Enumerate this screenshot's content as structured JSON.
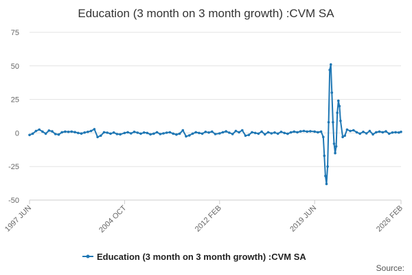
{
  "chart_data": {
    "type": "line",
    "title": "Education (3 month on 3 month growth) :CVM SA",
    "xlabel": "",
    "ylabel": "",
    "ylim": [
      -50,
      75
    ],
    "y_ticks": [
      75,
      50,
      25,
      0,
      -25,
      -50
    ],
    "x_range": [
      "1997-06",
      "2026-02"
    ],
    "x_tick_labels": [
      {
        "date": "1997-06",
        "label": "1997 JUN"
      },
      {
        "date": "2004-10",
        "label": "2004 OCT"
      },
      {
        "date": "2012-02",
        "label": "2012 FEB"
      },
      {
        "date": "2019-06",
        "label": "2019 JUN"
      },
      {
        "date": "2026-02",
        "label": "2026 FEB"
      }
    ],
    "grid": true,
    "legend_position": "bottom",
    "series": [
      {
        "name": "Education (3 month on 3 month growth) :CVM SA",
        "color": "#1f77b4",
        "points": [
          [
            "1997-06",
            -1.5
          ],
          [
            "1997-09",
            -0.5
          ],
          [
            "1997-12",
            1.5
          ],
          [
            "1998-03",
            2.5
          ],
          [
            "1998-06",
            1.0
          ],
          [
            "1998-09",
            -0.5
          ],
          [
            "1998-12",
            1.8
          ],
          [
            "1999-03",
            1.2
          ],
          [
            "1999-06",
            -0.8
          ],
          [
            "1999-09",
            -1.2
          ],
          [
            "1999-12",
            0.5
          ],
          [
            "2000-03",
            1.0
          ],
          [
            "2000-06",
            0.8
          ],
          [
            "2000-09",
            1.0
          ],
          [
            "2000-12",
            0.6
          ],
          [
            "2001-03",
            0.0
          ],
          [
            "2001-06",
            -0.4
          ],
          [
            "2001-09",
            0.3
          ],
          [
            "2001-12",
            0.8
          ],
          [
            "2002-03",
            1.5
          ],
          [
            "2002-06",
            2.8
          ],
          [
            "2002-09",
            -3.0
          ],
          [
            "2002-12",
            -2.0
          ],
          [
            "2003-03",
            0.5
          ],
          [
            "2003-06",
            0.2
          ],
          [
            "2003-09",
            -0.5
          ],
          [
            "2003-12",
            0.3
          ],
          [
            "2004-03",
            -0.8
          ],
          [
            "2004-06",
            -1.0
          ],
          [
            "2004-10",
            0.0
          ],
          [
            "2005-01",
            0.5
          ],
          [
            "2005-04",
            -0.3
          ],
          [
            "2005-07",
            0.8
          ],
          [
            "2005-10",
            0.2
          ],
          [
            "2006-01",
            -0.5
          ],
          [
            "2006-04",
            0.3
          ],
          [
            "2006-07",
            0.0
          ],
          [
            "2006-10",
            -1.0
          ],
          [
            "2007-01",
            -0.5
          ],
          [
            "2007-04",
            0.5
          ],
          [
            "2007-07",
            -0.8
          ],
          [
            "2007-10",
            -0.3
          ],
          [
            "2008-01",
            0.2
          ],
          [
            "2008-04",
            0.5
          ],
          [
            "2008-07",
            -0.5
          ],
          [
            "2008-10",
            -1.2
          ],
          [
            "2009-01",
            -0.5
          ],
          [
            "2009-04",
            2.0
          ],
          [
            "2009-07",
            -2.5
          ],
          [
            "2009-10",
            -1.8
          ],
          [
            "2010-01",
            -0.5
          ],
          [
            "2010-04",
            0.5
          ],
          [
            "2010-07",
            0.0
          ],
          [
            "2010-10",
            -0.5
          ],
          [
            "2011-01",
            0.8
          ],
          [
            "2011-04",
            0.3
          ],
          [
            "2011-07",
            1.0
          ],
          [
            "2011-10",
            -0.8
          ],
          [
            "2012-02",
            -0.3
          ],
          [
            "2012-05",
            0.5
          ],
          [
            "2012-08",
            1.2
          ],
          [
            "2012-11",
            0.2
          ],
          [
            "2013-02",
            -0.8
          ],
          [
            "2013-05",
            1.5
          ],
          [
            "2013-08",
            0.5
          ],
          [
            "2013-11",
            2.0
          ],
          [
            "2014-02",
            -2.0
          ],
          [
            "2014-05",
            -1.5
          ],
          [
            "2014-08",
            0.5
          ],
          [
            "2014-11",
            0.0
          ],
          [
            "2015-02",
            -0.5
          ],
          [
            "2015-05",
            1.0
          ],
          [
            "2015-08",
            -1.0
          ],
          [
            "2015-11",
            0.5
          ],
          [
            "2016-02",
            -0.3
          ],
          [
            "2016-05",
            0.3
          ],
          [
            "2016-08",
            -0.5
          ],
          [
            "2016-11",
            0.8
          ],
          [
            "2017-02",
            0.0
          ],
          [
            "2017-05",
            -0.6
          ],
          [
            "2017-08",
            0.4
          ],
          [
            "2017-11",
            1.0
          ],
          [
            "2018-02",
            0.5
          ],
          [
            "2018-05",
            1.2
          ],
          [
            "2018-08",
            1.5
          ],
          [
            "2018-11",
            1.0
          ],
          [
            "2019-02",
            1.3
          ],
          [
            "2019-06",
            1.0
          ],
          [
            "2019-09",
            0.5
          ],
          [
            "2019-12",
            1.0
          ],
          [
            "2020-02",
            -3.0
          ],
          [
            "2020-03",
            -17.0
          ],
          [
            "2020-04",
            -32.0
          ],
          [
            "2020-05",
            -38.0
          ],
          [
            "2020-06",
            -25.0
          ],
          [
            "2020-07",
            8.0
          ],
          [
            "2020-08",
            47.0
          ],
          [
            "2020-09",
            51.0
          ],
          [
            "2020-10",
            30.0
          ],
          [
            "2020-11",
            8.0
          ],
          [
            "2020-12",
            -8.0
          ],
          [
            "2021-01",
            -15.0
          ],
          [
            "2021-02",
            -10.0
          ],
          [
            "2021-03",
            15.0
          ],
          [
            "2021-04",
            24.0
          ],
          [
            "2021-05",
            20.0
          ],
          [
            "2021-06",
            9.0
          ],
          [
            "2021-08",
            -3.0
          ],
          [
            "2021-10",
            -2.0
          ],
          [
            "2021-12",
            2.5
          ],
          [
            "2022-03",
            1.5
          ],
          [
            "2022-06",
            2.0
          ],
          [
            "2022-09",
            0.5
          ],
          [
            "2022-12",
            -0.5
          ],
          [
            "2023-03",
            0.8
          ],
          [
            "2023-06",
            -0.3
          ],
          [
            "2023-09",
            1.5
          ],
          [
            "2023-12",
            -1.0
          ],
          [
            "2024-03",
            0.5
          ],
          [
            "2024-06",
            1.0
          ],
          [
            "2024-09",
            0.5
          ],
          [
            "2024-12",
            1.2
          ],
          [
            "2025-03",
            -0.5
          ],
          [
            "2025-06",
            0.3
          ],
          [
            "2025-09",
            0.5
          ],
          [
            "2025-12",
            0.3
          ],
          [
            "2026-02",
            0.8
          ]
        ]
      }
    ]
  },
  "source_label": "Source:"
}
